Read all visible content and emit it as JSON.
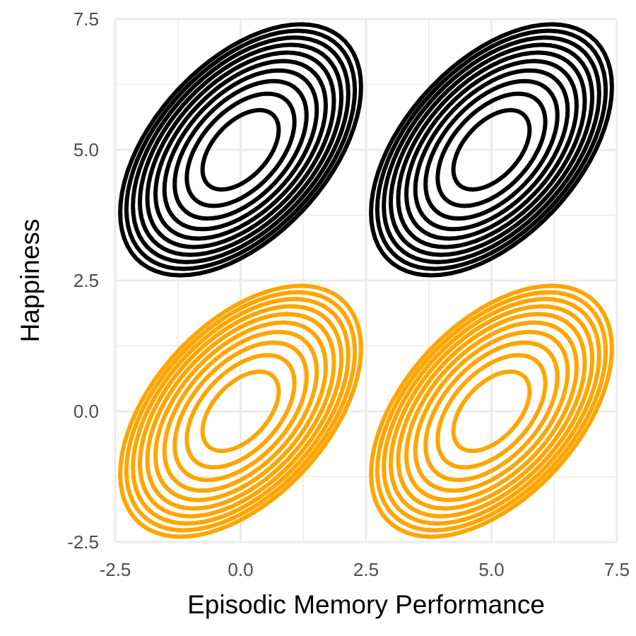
{
  "chart_data": {
    "type": "contour",
    "xlabel": "Episodic Memory Performance",
    "ylabel": "Happiness",
    "xlim": [
      -2.5,
      7.5
    ],
    "ylim": [
      -2.5,
      7.5
    ],
    "x_ticks": [
      "-2.5",
      "0.0",
      "2.5",
      "5.0",
      "7.5"
    ],
    "y_ticks": [
      "-2.5",
      "0.0",
      "2.5",
      "5.0",
      "7.5"
    ],
    "grid": true,
    "contour_levels": 10,
    "series": [
      {
        "color": "#000000",
        "clusters": [
          {
            "center_x": 0,
            "center_y": 5,
            "sd_x": 1,
            "sd_y": 1,
            "correlation": 0.5
          },
          {
            "center_x": 5,
            "center_y": 5,
            "sd_x": 1,
            "sd_y": 1,
            "correlation": 0.5
          }
        ]
      },
      {
        "color": "#FFA500",
        "clusters": [
          {
            "center_x": 0,
            "center_y": 0,
            "sd_x": 1,
            "sd_y": 1,
            "correlation": 0.5
          },
          {
            "center_x": 5,
            "center_y": 0,
            "sd_x": 1,
            "sd_y": 1,
            "correlation": 0.5
          }
        ]
      }
    ]
  }
}
